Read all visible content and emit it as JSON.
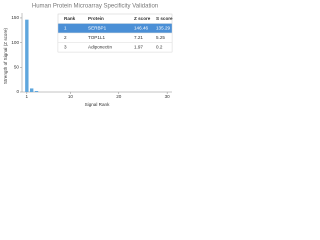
{
  "chart_data": {
    "type": "bar",
    "title": "Human Protein Microarray Specificity Validation",
    "x_label": "Signal Rank",
    "y_label": "Strength of Signal (Z score)",
    "x": [
      1,
      2,
      3
    ],
    "values": [
      146.46,
      7.21,
      1.97
    ],
    "color": "#5ea6dd",
    "xlim": [
      0,
      31
    ],
    "xticks": [
      1,
      10,
      20,
      30
    ],
    "ylim": [
      0,
      160
    ],
    "yticks": [
      0,
      50,
      100,
      150
    ],
    "table": {
      "header": [
        "Rank",
        "Protein",
        "Z score",
        "S score"
      ],
      "rows": [
        [
          "1",
          "SERBP1",
          "146.46",
          "135.29"
        ],
        [
          "2",
          "TOP1L1",
          "7.21",
          "5.25"
        ],
        [
          "3",
          "Adiponectin",
          "1.97",
          "0.2"
        ]
      ]
    }
  }
}
